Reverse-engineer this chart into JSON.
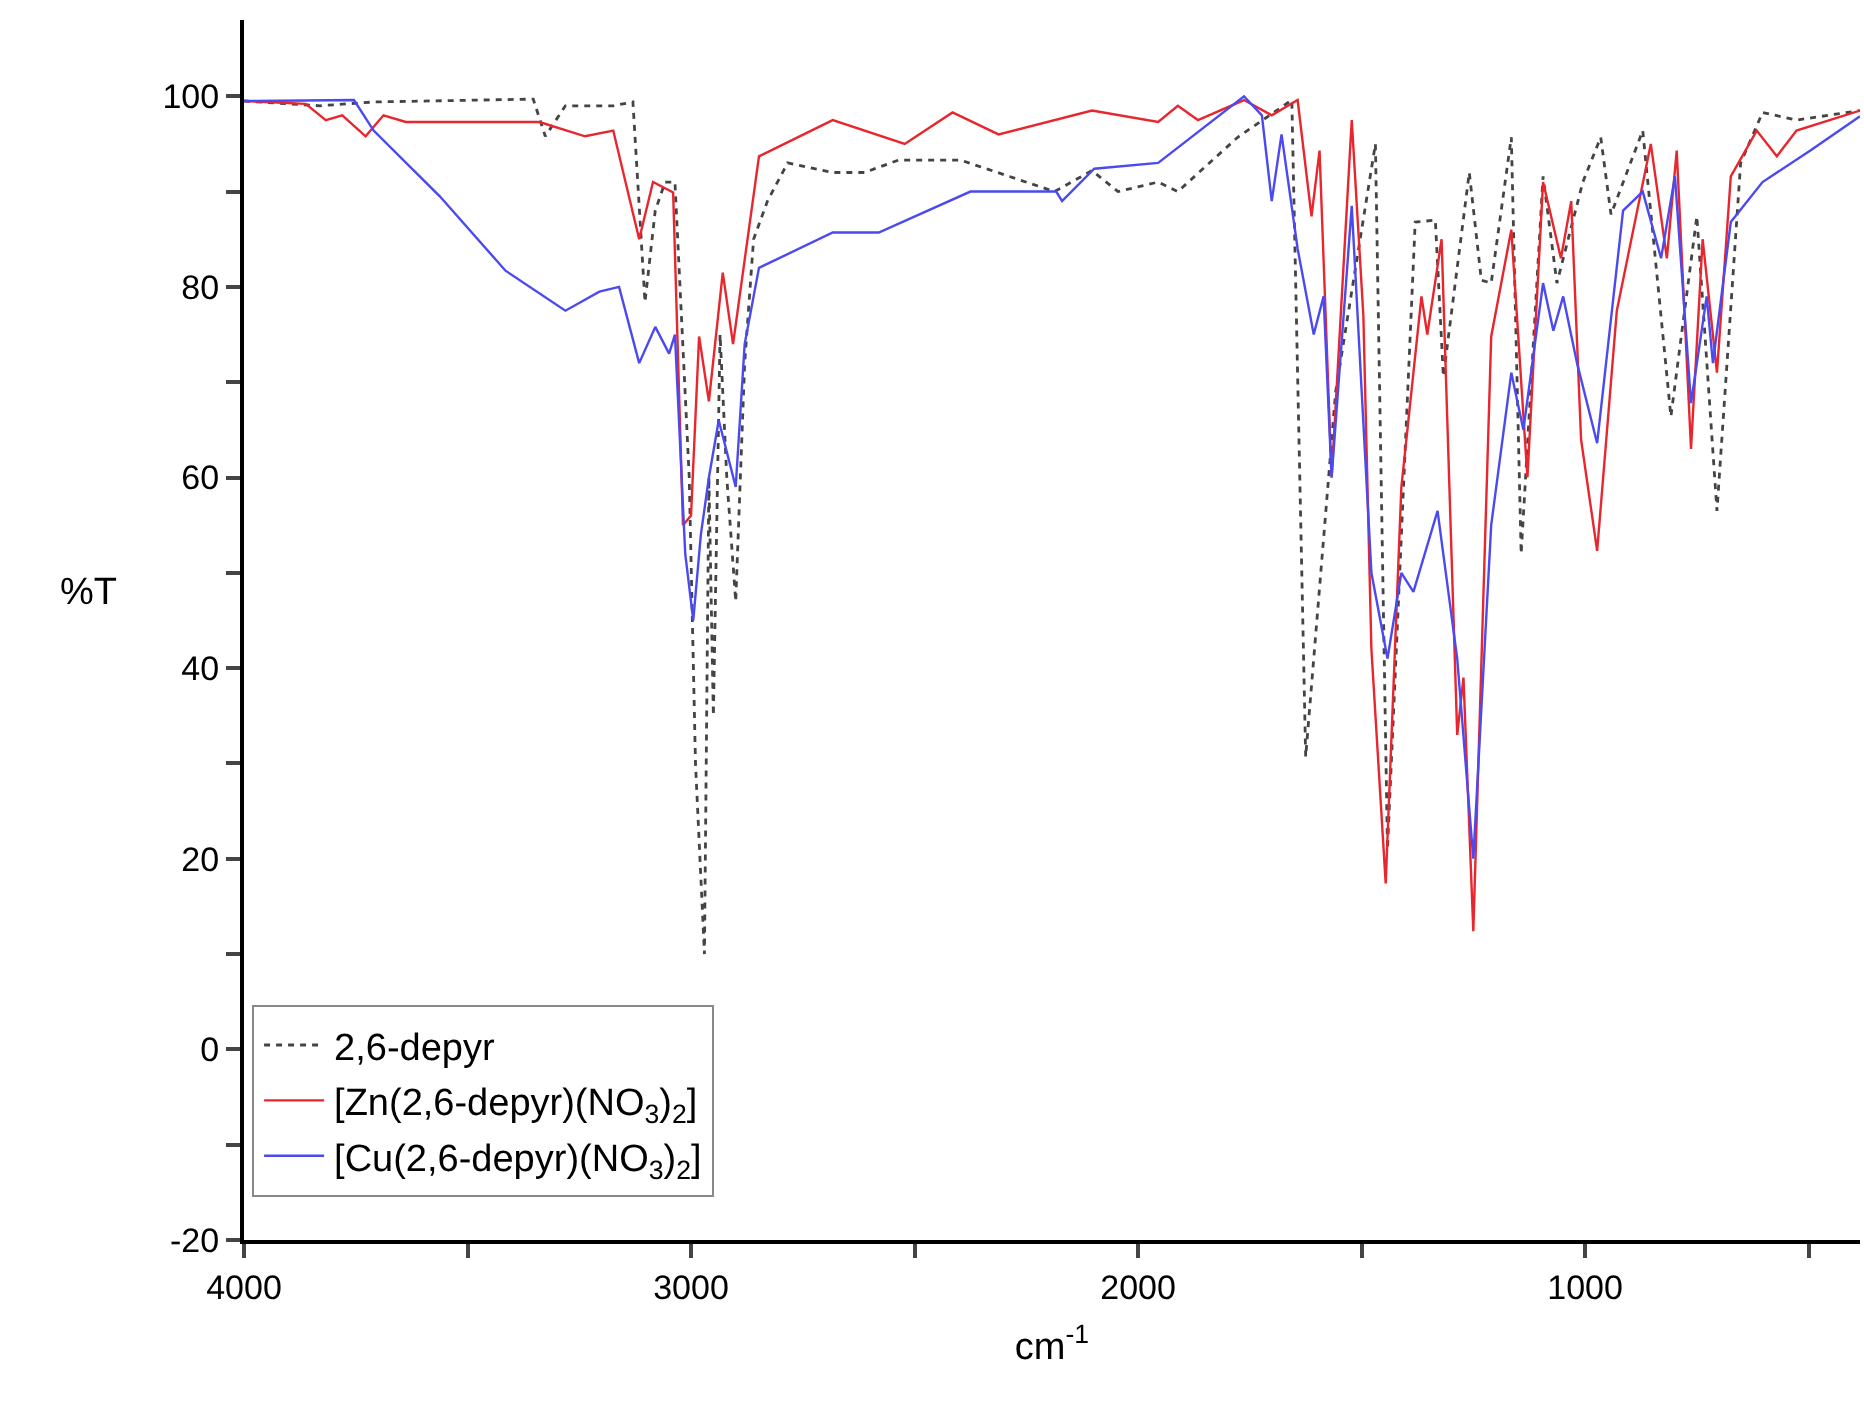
{
  "chart_data": {
    "type": "line",
    "xlabel": "cm$^{-1}$",
    "ylabel": "%T",
    "xlim": [
      4000,
      385
    ],
    "ylim": [
      -20,
      108
    ],
    "xticks": [
      4000,
      {
        "value": 3500,
        "label": null
      },
      3000,
      {
        "value": 2500,
        "label": null
      },
      2000,
      {
        "value": 1500,
        "label": null
      },
      1000,
      {
        "value": 500,
        "label": null
      }
    ],
    "yticks": [
      -20,
      {
        "value": -10,
        "label": null
      },
      0,
      {
        "value": 10,
        "label": null
      },
      20,
      {
        "value": 30,
        "label": null
      },
      40,
      {
        "value": 50,
        "label": null
      },
      60,
      {
        "value": 70,
        "label": null
      },
      80,
      {
        "value": 90,
        "label": null
      },
      100
    ],
    "legend": "bottom left",
    "marker": "none",
    "series": [
      {
        "name": "2,6-depyr",
        "color": "#444444",
        "line_style": "dotted",
        "x": [
          4000,
          3830,
          3710,
          3353,
          3326,
          3281,
          3174,
          3130,
          3103,
          3080,
          3058,
          3036,
          3004,
          2990,
          2970,
          2960,
          2950,
          2935,
          2920,
          2900,
          2880,
          2860,
          2829,
          2784,
          2683,
          2612,
          2536,
          2397,
          2187,
          2103,
          2045,
          1955,
          1911,
          1777,
          1656,
          1625,
          1558,
          1469,
          1442,
          1380,
          1335,
          1317,
          1259,
          1232,
          1210,
          1165,
          1143,
          1094,
          1063,
          1005,
          965,
          942,
          871,
          808,
          750,
          705,
          652,
          603,
          527,
          385
        ],
        "values": [
          99.5,
          99,
          99.4,
          99.7,
          95.8,
          99,
          99,
          99.4,
          78.4,
          88,
          91,
          91,
          60,
          30,
          10,
          60,
          35,
          75,
          60,
          47,
          72,
          85,
          89,
          93,
          92,
          92,
          93.3,
          93.3,
          90,
          92.2,
          90,
          91,
          90,
          95.7,
          99.6,
          30.7,
          69,
          95,
          21,
          86.8,
          87,
          70.6,
          92,
          80.7,
          80.4,
          95.7,
          52,
          91.6,
          80.4,
          91,
          95.7,
          87.6,
          96.4,
          66.4,
          87.4,
          56.5,
          93,
          98.3,
          97.5,
          98.5
        ]
      },
      {
        "name": "[Zn(2,6-depyr)(NO$_{3}$)$_{2}$]",
        "color": "#e8262e",
        "line_style": "solid",
        "x": [
          4000,
          3862,
          3817,
          3780,
          3728,
          3688,
          3638,
          3339,
          3237,
          3174,
          3116,
          3085,
          3040,
          3018,
          3000,
          2982,
          2960,
          2929,
          2906,
          2848,
          2683,
          2522,
          2415,
          2312,
          2103,
          1955,
          1911,
          1866,
          1763,
          1701,
          1643,
          1612,
          1594,
          1567,
          1522,
          1496,
          1478,
          1446,
          1411,
          1366,
          1353,
          1321,
          1286,
          1272,
          1250,
          1210,
          1165,
          1129,
          1094,
          1054,
          1031,
          1009,
          973,
          929,
          853,
          817,
          795,
          763,
          737,
          705,
          674,
          616,
          571,
          527,
          385
        ],
        "values": [
          99.5,
          99.2,
          97.5,
          98,
          95.8,
          98,
          97.3,
          97.3,
          95.8,
          96.4,
          85,
          91,
          89.9,
          55,
          56,
          74.8,
          68,
          81.5,
          74,
          93.7,
          97.5,
          95,
          98.3,
          96,
          98.5,
          97.3,
          99,
          97.5,
          99.6,
          98,
          99.6,
          87.4,
          94.3,
          60,
          97.5,
          77,
          42,
          17.4,
          59,
          79,
          75,
          85,
          33,
          39,
          12.4,
          74.8,
          86,
          60,
          91,
          83,
          89,
          64,
          52.3,
          77.5,
          95,
          83,
          94.3,
          63,
          85,
          71,
          91.6,
          96.4,
          93.7,
          96.4,
          98.5
        ]
      },
      {
        "name": "[Cu(2,6-depyr)(NO$_{3}$)$_{2}$]",
        "color": "#4a4af0",
        "line_style": "solid",
        "x": [
          4000,
          3754,
          3710,
          3562,
          3415,
          3281,
          3205,
          3161,
          3116,
          3080,
          3049,
          3036,
          3013,
          2995,
          2978,
          2960,
          2938,
          2900,
          2880,
          2848,
          2683,
          2580,
          2375,
          2183,
          2170,
          2098,
          1955,
          1763,
          1723,
          1701,
          1679,
          1643,
          1607,
          1585,
          1567,
          1522,
          1478,
          1442,
          1411,
          1384,
          1330,
          1286,
          1250,
          1210,
          1165,
          1138,
          1094,
          1071,
          1049,
          1018,
          973,
          915,
          871,
          830,
          799,
          763,
          728,
          714,
          674,
          603,
          496,
          385
        ],
        "values": [
          99.5,
          99.6,
          96.4,
          89.5,
          81.7,
          77.5,
          79.5,
          80,
          72,
          75.8,
          73,
          75,
          52,
          45,
          54,
          60,
          66,
          59,
          74,
          82,
          85.7,
          85.7,
          90,
          90,
          89,
          92.4,
          93,
          100,
          98,
          89,
          96,
          84,
          75,
          79,
          60,
          88.5,
          50,
          41,
          50,
          48,
          56.5,
          41,
          20,
          55,
          71,
          65,
          80.4,
          75.4,
          79,
          72,
          63.6,
          88,
          90,
          83,
          91.6,
          67.8,
          79,
          72,
          86.8,
          91,
          94.3,
          97.9
        ]
      }
    ]
  }
}
